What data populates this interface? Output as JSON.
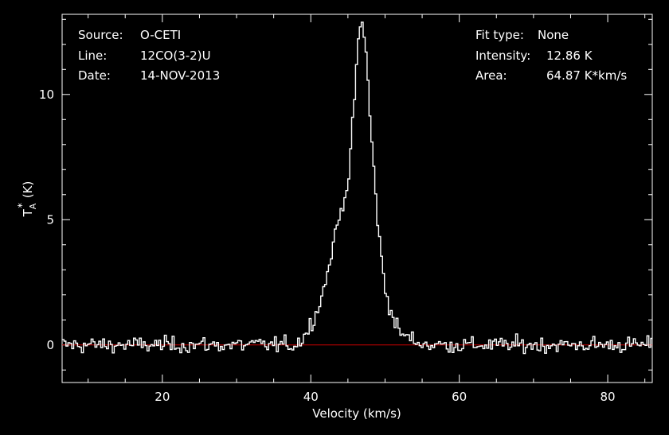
{
  "header": {
    "source_label": "Source:",
    "source_value": "O-CETI",
    "line_label": "Line:",
    "line_value": "12CO(3-2)U",
    "date_label": "Date:",
    "date_value": "14-NOV-2013",
    "fit_label": "Fit type:",
    "fit_value": "None",
    "intensity_label": "Intensity:",
    "intensity_value": "12.86 K",
    "area_label": "Area:",
    "area_value": "64.87 K*km/s"
  },
  "colors": {
    "background": "#000000",
    "foreground": "#ffffff",
    "baseline": "#cc0000"
  },
  "chart_data": {
    "type": "line",
    "xlabel": "Velocity (km/s)",
    "ylabel_main": "T",
    "ylabel_sub": "A",
    "ylabel_sup": "*",
    "ylabel_unit": "(K)",
    "xlim": [
      6.5,
      86
    ],
    "ylim": [
      -1.5,
      13.2
    ],
    "x_ticks": [
      20,
      40,
      60,
      80
    ],
    "x_tick_labels": [
      "20",
      "40",
      "60",
      "80"
    ],
    "y_ticks": [
      0,
      5,
      10
    ],
    "y_tick_labels": [
      "0",
      "5",
      "10"
    ],
    "baseline_y": 0,
    "noise_rms": 0.25,
    "series": [
      {
        "style": "step",
        "profile_x": [
          6.5,
          38.0,
          39.5,
          41.0,
          42.0,
          43.0,
          44.0,
          45.0,
          45.5,
          46.0,
          46.5,
          47.0,
          47.5,
          48.0,
          48.5,
          49.0,
          49.5,
          50.0,
          51.0,
          52.0,
          54.0,
          56.0,
          86.0
        ],
        "profile_y": [
          0.0,
          0.0,
          0.5,
          1.5,
          2.5,
          4.0,
          5.3,
          6.5,
          8.0,
          10.5,
          12.6,
          12.86,
          11.5,
          9.0,
          7.0,
          5.0,
          3.5,
          2.3,
          1.1,
          0.5,
          0.15,
          0.0,
          0.0
        ]
      }
    ]
  }
}
